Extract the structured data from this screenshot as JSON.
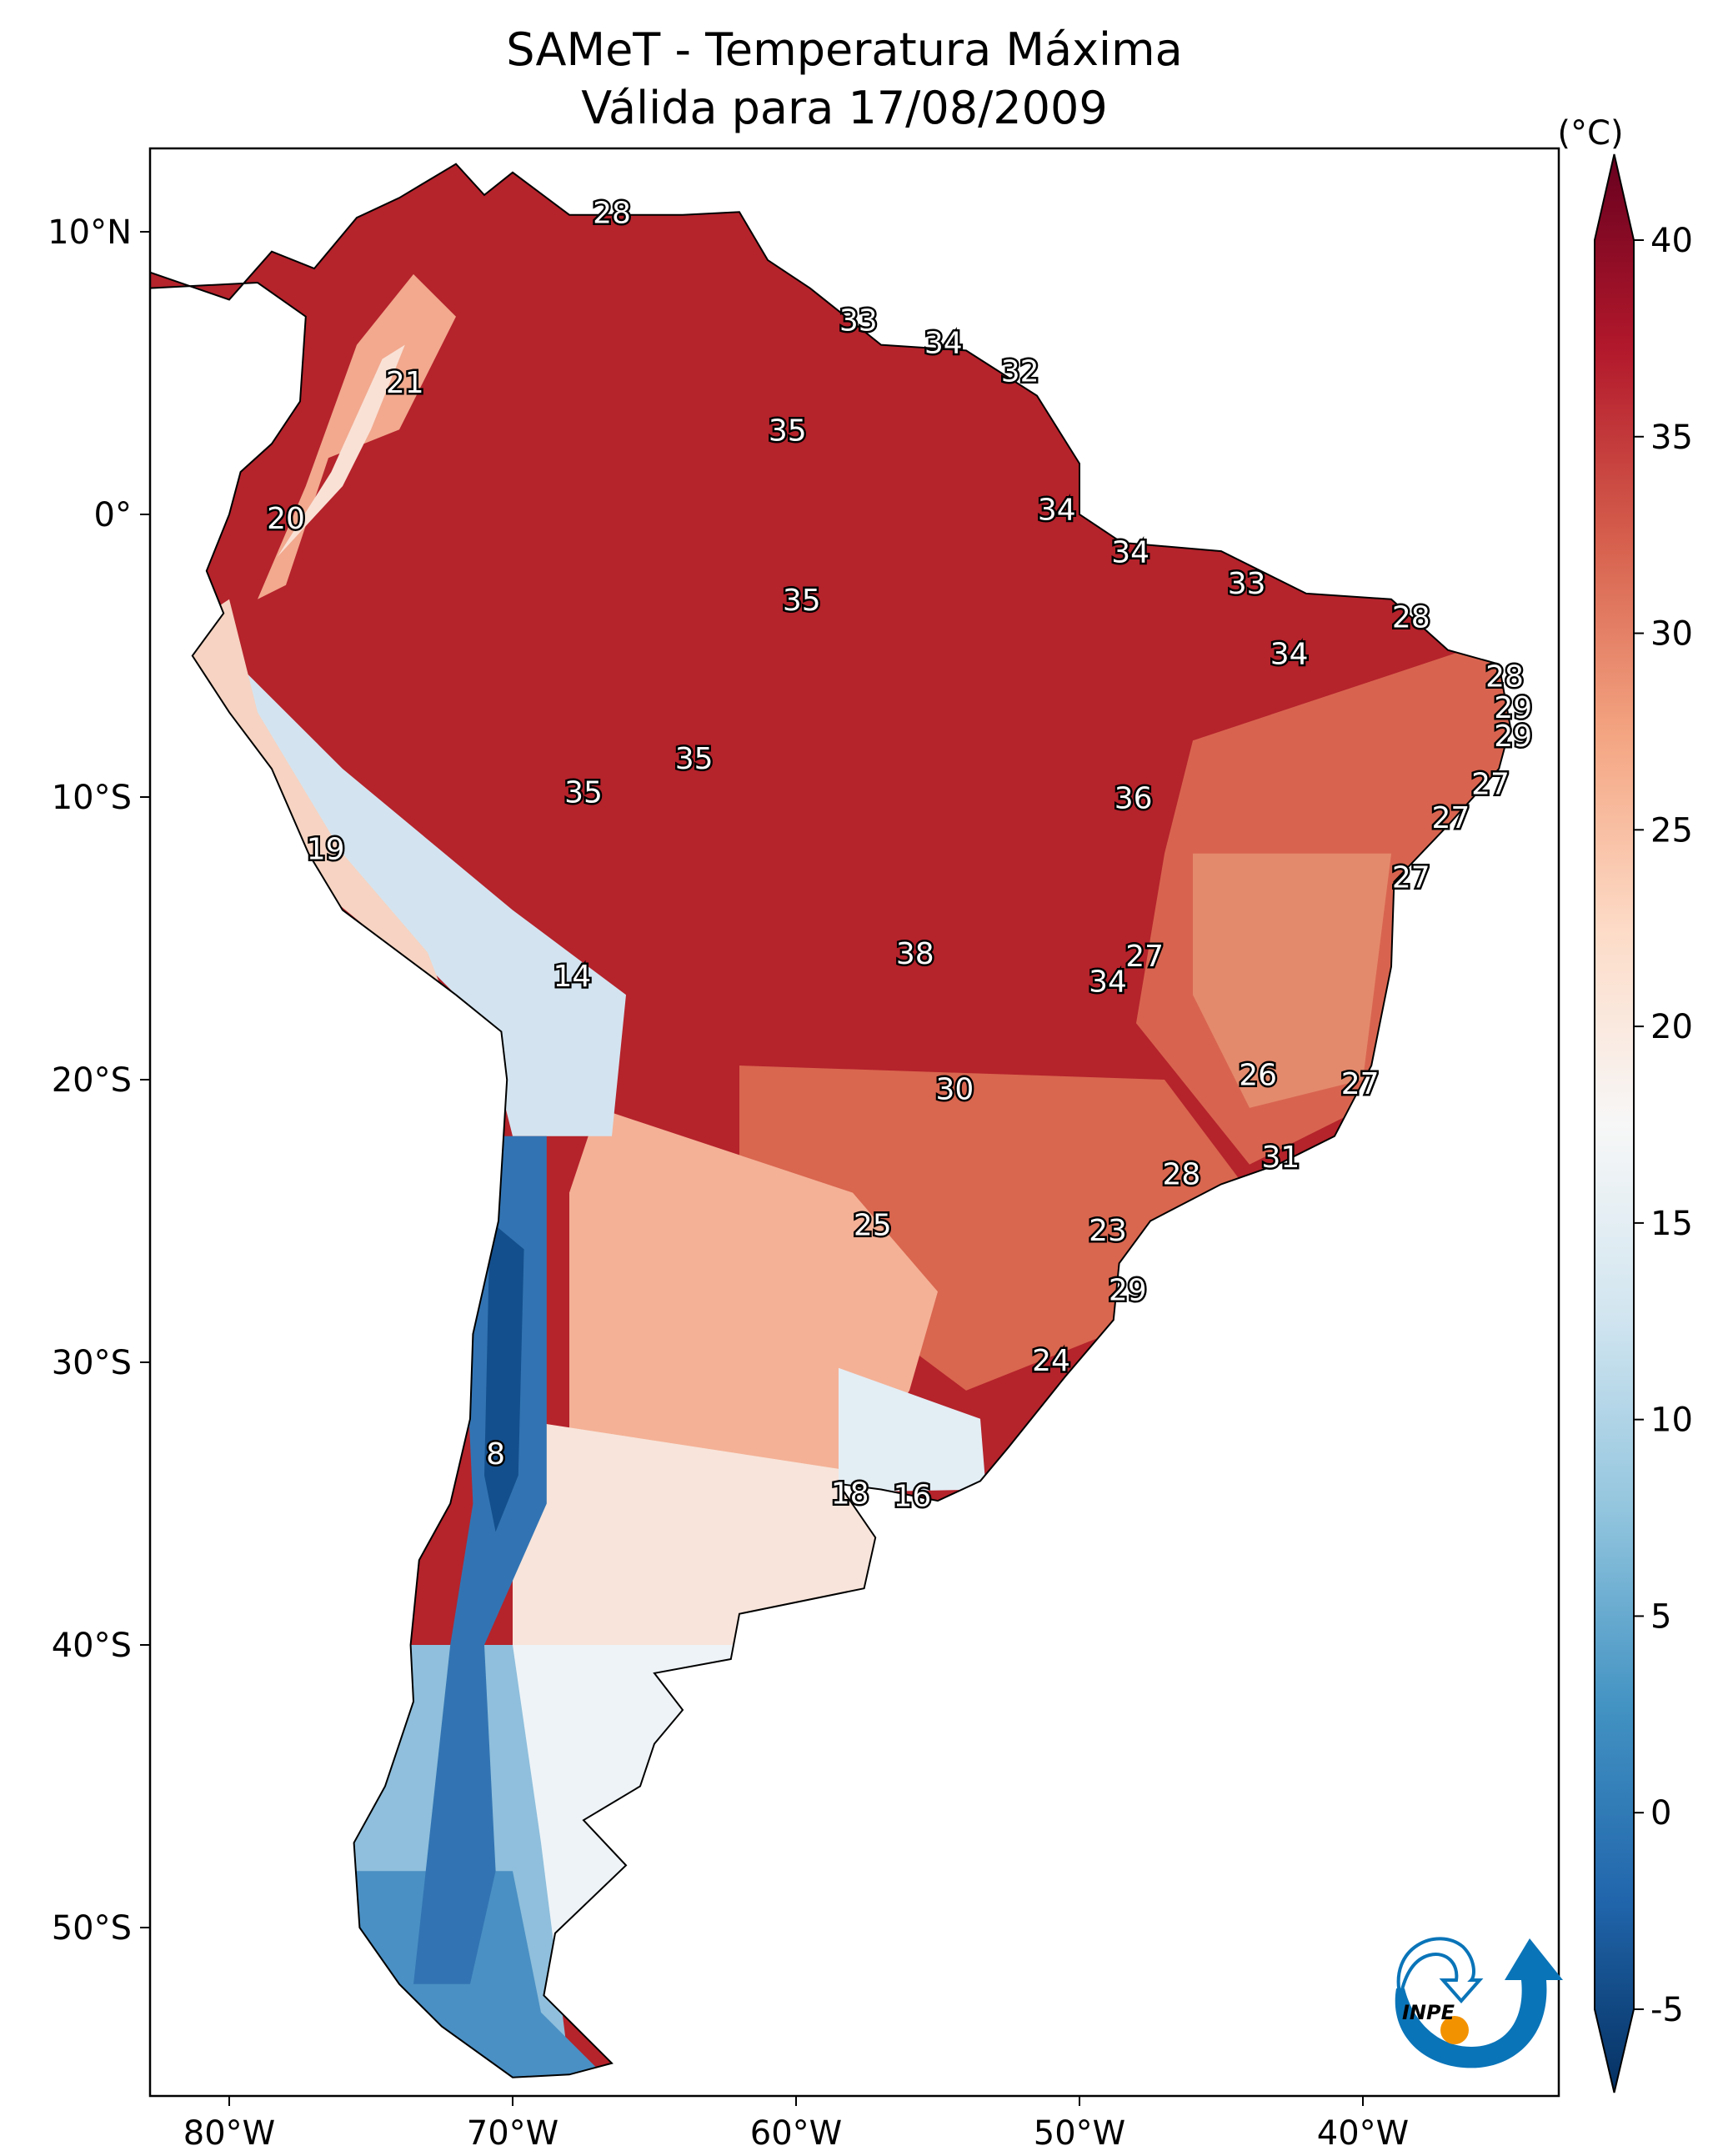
{
  "title": {
    "line1": "SAMeT - Temperatura Máxima",
    "line2": "Válida para 17/08/2009"
  },
  "map": {
    "extent": {
      "lon": [
        -82.8,
        -33.1
      ],
      "lat": [
        -56.0,
        12.95
      ]
    },
    "lon_ticks": [
      {
        "value": -80,
        "label": "80°W"
      },
      {
        "value": -70,
        "label": "70°W"
      },
      {
        "value": -60,
        "label": "60°W"
      },
      {
        "value": -50,
        "label": "50°W"
      },
      {
        "value": -40,
        "label": "40°W"
      }
    ],
    "lat_ticks": [
      {
        "value": 10,
        "label": "10°N"
      },
      {
        "value": 0,
        "label": "0°"
      },
      {
        "value": -10,
        "label": "10°S"
      },
      {
        "value": -20,
        "label": "20°S"
      },
      {
        "value": -30,
        "label": "30°S"
      },
      {
        "value": -40,
        "label": "40°S"
      },
      {
        "value": -50,
        "label": "50°S"
      }
    ],
    "station_labels": [
      {
        "v": "28",
        "lon": -66.5,
        "lat": 10.6
      },
      {
        "v": "33",
        "lon": -57.8,
        "lat": 6.8
      },
      {
        "v": "34",
        "lon": -54.8,
        "lat": 6.0
      },
      {
        "v": "32",
        "lon": -52.1,
        "lat": 5.0
      },
      {
        "v": "21",
        "lon": -73.8,
        "lat": 4.6
      },
      {
        "v": "35",
        "lon": -60.3,
        "lat": 2.9
      },
      {
        "v": "20",
        "lon": -78.0,
        "lat": -0.2
      },
      {
        "v": "34",
        "lon": -50.8,
        "lat": 0.1
      },
      {
        "v": "34",
        "lon": -48.2,
        "lat": -1.4
      },
      {
        "v": "35",
        "lon": -59.8,
        "lat": -3.1
      },
      {
        "v": "33",
        "lon": -44.1,
        "lat": -2.5
      },
      {
        "v": "28",
        "lon": -38.3,
        "lat": -3.7
      },
      {
        "v": "34",
        "lon": -42.6,
        "lat": -5.0
      },
      {
        "v": "28",
        "lon": -35.0,
        "lat": -5.8
      },
      {
        "v": "29",
        "lon": -34.7,
        "lat": -6.9
      },
      {
        "v": "29",
        "lon": -34.7,
        "lat": -7.9
      },
      {
        "v": "35",
        "lon": -63.6,
        "lat": -8.7
      },
      {
        "v": "27",
        "lon": -35.5,
        "lat": -9.6
      },
      {
        "v": "35",
        "lon": -67.5,
        "lat": -9.9
      },
      {
        "v": "36",
        "lon": -48.1,
        "lat": -10.1
      },
      {
        "v": "27",
        "lon": -36.9,
        "lat": -10.8
      },
      {
        "v": "19",
        "lon": -76.6,
        "lat": -11.9
      },
      {
        "v": "27",
        "lon": -38.3,
        "lat": -12.9
      },
      {
        "v": "38",
        "lon": -55.8,
        "lat": -15.6
      },
      {
        "v": "27",
        "lon": -47.7,
        "lat": -15.7
      },
      {
        "v": "14",
        "lon": -67.9,
        "lat": -16.4
      },
      {
        "v": "34",
        "lon": -49.0,
        "lat": -16.6
      },
      {
        "v": "26",
        "lon": -43.7,
        "lat": -19.9
      },
      {
        "v": "27",
        "lon": -40.1,
        "lat": -20.2
      },
      {
        "v": "30",
        "lon": -54.4,
        "lat": -20.4
      },
      {
        "v": "31",
        "lon": -42.9,
        "lat": -22.8
      },
      {
        "v": "28",
        "lon": -46.4,
        "lat": -23.4
      },
      {
        "v": "23",
        "lon": -49.0,
        "lat": -25.4
      },
      {
        "v": "25",
        "lon": -57.3,
        "lat": -25.2
      },
      {
        "v": "29",
        "lon": -48.3,
        "lat": -27.5
      },
      {
        "v": "24",
        "lon": -51.0,
        "lat": -30.0
      },
      {
        "v": "8",
        "lon": -70.6,
        "lat": -33.3
      },
      {
        "v": "18",
        "lon": -58.1,
        "lat": -34.7
      },
      {
        "v": "16",
        "lon": -55.9,
        "lat": -34.8
      }
    ]
  },
  "colorbar": {
    "unit": "(°C)",
    "range": [
      -5,
      40
    ],
    "extend": "both",
    "ticks": [
      {
        "value": 40,
        "label": "40"
      },
      {
        "value": 35,
        "label": "35"
      },
      {
        "value": 30,
        "label": "30"
      },
      {
        "value": 25,
        "label": "25"
      },
      {
        "value": 20,
        "label": "20"
      },
      {
        "value": 15,
        "label": "15"
      },
      {
        "value": 10,
        "label": "10"
      },
      {
        "value": 5,
        "label": "5"
      },
      {
        "value": 0,
        "label": "0"
      },
      {
        "value": -5,
        "label": "-5"
      }
    ],
    "colormap": "RdBu_r",
    "colors": [
      "#053061",
      "#2166ac",
      "#4393c3",
      "#92c5de",
      "#d1e5f0",
      "#f7f7f7",
      "#fddbc7",
      "#f4a582",
      "#d6604d",
      "#b2182b",
      "#67001f"
    ]
  },
  "logo": {
    "text": "INPE",
    "blue": "#0a74b8",
    "orange": "#f39200"
  }
}
